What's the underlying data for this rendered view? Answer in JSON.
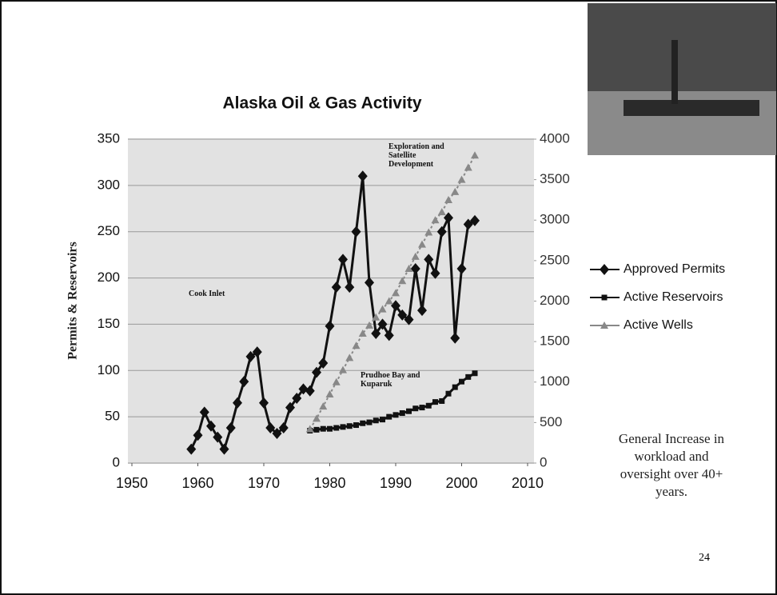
{
  "chart_data": {
    "type": "line",
    "title": "Alaska Oil & Gas Activity",
    "ylabel": "Permits & Reservoirs",
    "xlim": [
      1950,
      2010
    ],
    "xticks": [
      1950,
      1960,
      1970,
      1980,
      1990,
      2000,
      2010
    ],
    "ylim": [
      0,
      350
    ],
    "yticks": [
      0,
      50,
      100,
      150,
      200,
      250,
      300,
      350
    ],
    "y2lim": [
      0,
      4000
    ],
    "y2ticks": [
      0,
      500,
      1000,
      1500,
      2000,
      2500,
      3000,
      3500,
      4000
    ],
    "grid": true,
    "legend": "right",
    "annotations": [
      "Cook Inlet",
      "Exploration and Satellite Development",
      "Prudhoe Bay and Kuparuk"
    ],
    "series": [
      {
        "name": "Approved Permits",
        "color": "#111111",
        "marker": "diamond",
        "x": [
          1959,
          1960,
          1961,
          1962,
          1963,
          1964,
          1965,
          1966,
          1967,
          1968,
          1969,
          1970,
          1971,
          1972,
          1973,
          1974,
          1975,
          1976,
          1977,
          1978,
          1979,
          1980,
          1981,
          1982,
          1983,
          1984,
          1985,
          1986,
          1987,
          1988,
          1989,
          1990,
          1991,
          1992,
          1993,
          1994,
          1995,
          1996,
          1997,
          1998,
          1999,
          2000,
          2001,
          2002
        ],
        "values": [
          15,
          30,
          55,
          40,
          28,
          15,
          38,
          65,
          88,
          115,
          120,
          65,
          38,
          32,
          38,
          60,
          70,
          80,
          78,
          98,
          108,
          148,
          190,
          220,
          190,
          250,
          310,
          195,
          140,
          150,
          138,
          170,
          160,
          155,
          210,
          165,
          220,
          205,
          250,
          265,
          135,
          210,
          258,
          262
        ]
      },
      {
        "name": "Active Reservoirs",
        "color": "#111111",
        "marker": "square",
        "x": [
          1977,
          1978,
          1979,
          1980,
          1981,
          1982,
          1983,
          1984,
          1985,
          1986,
          1987,
          1988,
          1989,
          1990,
          1991,
          1992,
          1993,
          1994,
          1995,
          1996,
          1997,
          1998,
          1999,
          2000,
          2001,
          2002
        ],
        "values": [
          35,
          36,
          37,
          37,
          38,
          39,
          40,
          41,
          43,
          44,
          46,
          47,
          50,
          52,
          54,
          56,
          59,
          60,
          62,
          66,
          67,
          75,
          82,
          88,
          93,
          97
        ]
      },
      {
        "name": "Active Wells",
        "color": "#888888",
        "marker": "triangle",
        "axis": "y2",
        "x": [
          1977,
          1978,
          1979,
          1980,
          1981,
          1982,
          1983,
          1984,
          1985,
          1986,
          1987,
          1988,
          1989,
          1990,
          1991,
          1992,
          1993,
          1994,
          1995,
          1996,
          1997,
          1998,
          1999,
          2000,
          2001,
          2002
        ],
        "values": [
          420,
          550,
          700,
          850,
          1000,
          1150,
          1300,
          1450,
          1600,
          1700,
          1800,
          1900,
          2000,
          2100,
          2250,
          2400,
          2550,
          2700,
          2850,
          3000,
          3100,
          3250,
          3350,
          3500,
          3650,
          3800
        ]
      }
    ]
  },
  "slide": {
    "note": "General Increase in workload and oversight over 40+ years.",
    "page_number": "24"
  }
}
